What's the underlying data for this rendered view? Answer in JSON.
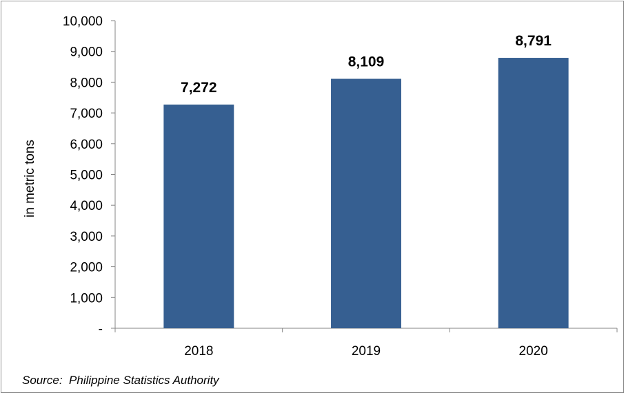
{
  "chart_data": {
    "type": "bar",
    "categories": [
      "2018",
      "2019",
      "2020"
    ],
    "values": [
      7272,
      8109,
      8791
    ],
    "data_labels": [
      "7,272",
      "8,109",
      "8,791"
    ],
    "ylabel": "in metric tons",
    "ylim": [
      0,
      10000
    ],
    "y_ticks": [
      {
        "value": 0,
        "label": "-"
      },
      {
        "value": 1000,
        "label": "1,000"
      },
      {
        "value": 2000,
        "label": "2,000"
      },
      {
        "value": 3000,
        "label": "3,000"
      },
      {
        "value": 4000,
        "label": "4,000"
      },
      {
        "value": 5000,
        "label": "5,000"
      },
      {
        "value": 6000,
        "label": "6,000"
      },
      {
        "value": 7000,
        "label": "7,000"
      },
      {
        "value": 8000,
        "label": "8,000"
      },
      {
        "value": 9000,
        "label": "9,000"
      },
      {
        "value": 10000,
        "label": "10,000"
      }
    ],
    "bar_color": "#365F91",
    "grid": false,
    "legend": "none"
  },
  "source": "Source:  Philippine Statistics Authority"
}
